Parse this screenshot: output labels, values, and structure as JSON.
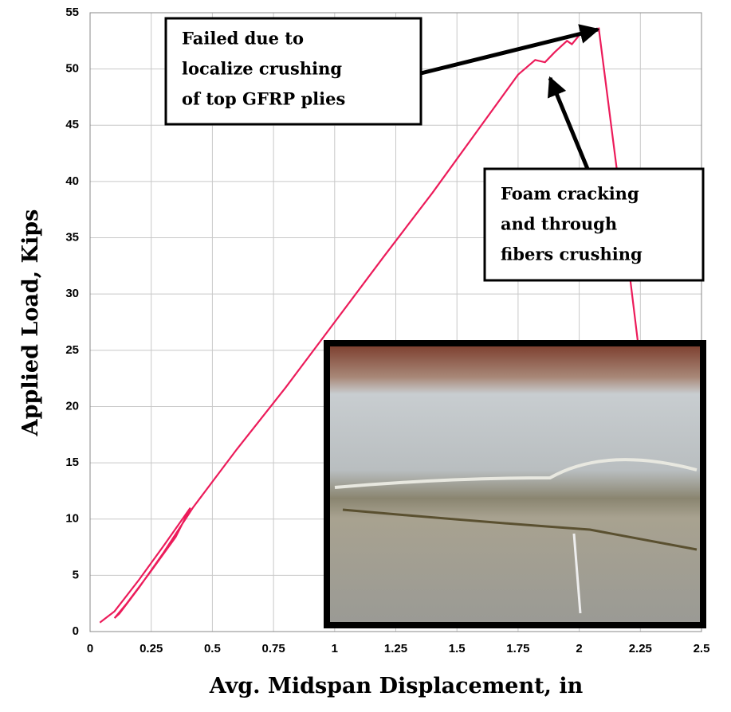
{
  "chart_data": {
    "type": "line",
    "x_label": "Avg. Midspan Displacement, in",
    "y_label": "Applied Load, Kips",
    "xlim": [
      0,
      2.5
    ],
    "ylim": [
      0,
      55
    ],
    "xticks": [
      0,
      0.25,
      0.5,
      0.75,
      1,
      1.25,
      1.5,
      1.75,
      2,
      2.25,
      2.5
    ],
    "yticks": [
      0,
      5,
      10,
      15,
      20,
      25,
      30,
      35,
      40,
      45,
      50,
      55
    ],
    "grid": true,
    "series": [
      {
        "color": "#ec1b5a",
        "x": [
          0.04,
          0.1,
          0.2,
          0.3,
          0.41,
          0.35,
          0.25,
          0.15,
          0.1,
          0.12,
          0.2,
          0.3,
          0.42,
          0.6,
          0.8,
          1.0,
          1.2,
          1.4,
          1.6,
          1.75,
          1.82,
          1.86,
          1.9,
          1.95,
          1.97,
          2.0,
          2.08,
          2.16,
          2.24
        ],
        "y": [
          0.8,
          1.8,
          4.6,
          7.6,
          11,
          8.4,
          5.4,
          2.5,
          1.2,
          1.6,
          3.9,
          7,
          11,
          16.2,
          21.7,
          27.5,
          33.3,
          39,
          45,
          49.5,
          50.8,
          50.6,
          51.5,
          52.5,
          52.2,
          53,
          53.6,
          40,
          25.7
        ]
      }
    ],
    "annotations": [
      {
        "lines": [
          "Failed due to",
          "localize crushing",
          "of top GFRP plies"
        ]
      },
      {
        "lines": [
          "Foam cracking",
          "and through",
          "fibers crushing"
        ]
      }
    ]
  }
}
